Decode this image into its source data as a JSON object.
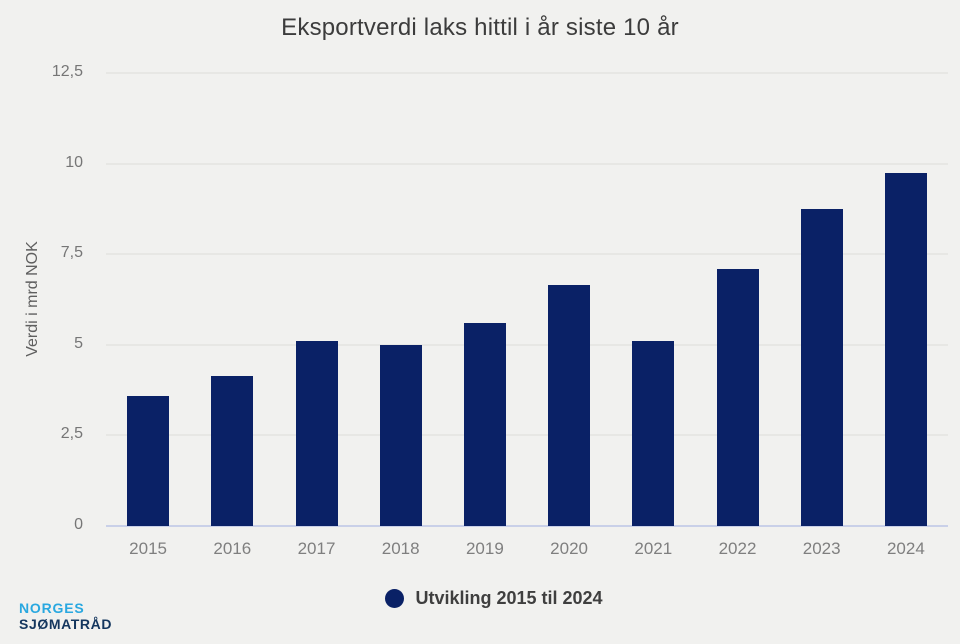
{
  "title": "Eksportverdi laks hittil i år siste 10 år",
  "chart_data": {
    "type": "bar",
    "title": "Eksportverdi laks hittil i år siste 10 år",
    "xlabel": "",
    "ylabel": "Verdi i mrd NOK",
    "categories": [
      "2015",
      "2016",
      "2017",
      "2018",
      "2019",
      "2020",
      "2021",
      "2022",
      "2023",
      "2024"
    ],
    "values": [
      3.6,
      4.15,
      5.1,
      5.0,
      5.6,
      6.65,
      5.1,
      7.1,
      8.75,
      9.75
    ],
    "series_name": "Utvikling 2015 til 2024",
    "ylim": [
      0,
      12.5
    ],
    "ytick_values": [
      0,
      2.5,
      5,
      7.5,
      10,
      12.5
    ],
    "ytick_labels": [
      "0",
      "2,5",
      "5",
      "7,5",
      "10",
      "12,5"
    ],
    "grid": true,
    "legend_position": "bottom"
  },
  "legend": {
    "label": "Utvikling 2015 til 2024"
  },
  "logo": {
    "line1": "NORGES",
    "line2": "SJØMATRÅD"
  },
  "colors": {
    "background": "#f1f1ef",
    "bar": "#0a2166",
    "gridline": "#e7e7e4",
    "zero_line": "#c9d0e8",
    "logo_blue": "#29a8e0",
    "logo_navy": "#14365e"
  }
}
